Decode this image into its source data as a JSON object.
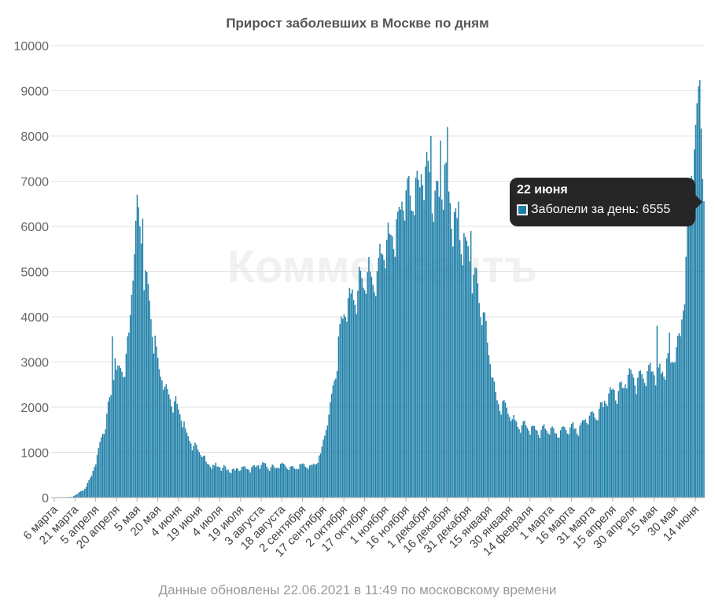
{
  "chart_data": {
    "type": "bar",
    "title": "Прирост заболевших в Москве по дням",
    "series": [
      {
        "name": "Заболели за день",
        "color": "#1e7fa8"
      }
    ],
    "ylim": [
      0,
      10000
    ],
    "yticks": [
      0,
      1000,
      2000,
      3000,
      4000,
      5000,
      6000,
      7000,
      8000,
      9000,
      10000
    ],
    "x_start": "2020-03-06",
    "x_end": "2021-06-22",
    "xticks": [
      "6 марта",
      "21 марта",
      "5 апреля",
      "20 апреля",
      "5 мая",
      "20 мая",
      "4 июня",
      "19 июня",
      "4 июля",
      "19 июля",
      "3 августа",
      "18 августа",
      "2 сентября",
      "17 сентября",
      "2 октября",
      "17 октября",
      "1 ноября",
      "16 ноября",
      "1 декабря",
      "16 декабря",
      "31 декабря",
      "15 января",
      "30 января",
      "14 февраля",
      "1 марта",
      "16 марта",
      "31 марта",
      "15 апреля",
      "30 апреля",
      "15 мая",
      "30 мая",
      "14 июня"
    ],
    "daily_anchors": [
      [
        "2020-03-06",
        5
      ],
      [
        "2020-03-21",
        15
      ],
      [
        "2020-03-29",
        160
      ],
      [
        "2020-04-05",
        550
      ],
      [
        "2020-04-12",
        1350
      ],
      [
        "2020-04-20",
        2600
      ],
      [
        "2020-04-27",
        2800
      ],
      [
        "2020-05-01",
        3500
      ],
      [
        "2020-05-05",
        5800
      ],
      [
        "2020-05-08",
        6000
      ],
      [
        "2020-05-12",
        5200
      ],
      [
        "2020-05-18",
        3900
      ],
      [
        "2020-05-22",
        2800
      ],
      [
        "2020-05-28",
        2400
      ],
      [
        "2020-06-04",
        2000
      ],
      [
        "2020-06-12",
        1400
      ],
      [
        "2020-06-19",
        1050
      ],
      [
        "2020-06-26",
        800
      ],
      [
        "2020-07-04",
        650
      ],
      [
        "2020-07-19",
        600
      ],
      [
        "2020-08-03",
        690
      ],
      [
        "2020-08-18",
        680
      ],
      [
        "2020-09-02",
        660
      ],
      [
        "2020-09-10",
        700
      ],
      [
        "2020-09-17",
        880
      ],
      [
        "2020-09-24",
        2000
      ],
      [
        "2020-10-02",
        3700
      ],
      [
        "2020-10-10",
        4500
      ],
      [
        "2020-10-17",
        4600
      ],
      [
        "2020-10-24",
        4800
      ],
      [
        "2020-11-01",
        5200
      ],
      [
        "2020-11-08",
        5800
      ],
      [
        "2020-11-16",
        6300
      ],
      [
        "2020-11-24",
        6800
      ],
      [
        "2020-12-01",
        7000
      ],
      [
        "2020-12-08",
        6700
      ],
      [
        "2020-12-16",
        6800
      ],
      [
        "2020-12-24",
        6000
      ],
      [
        "2020-12-31",
        5300
      ],
      [
        "2021-01-08",
        4800
      ],
      [
        "2021-01-15",
        3500
      ],
      [
        "2021-01-22",
        2200
      ],
      [
        "2021-01-30",
        1850
      ],
      [
        "2021-02-07",
        1600
      ],
      [
        "2021-02-14",
        1500
      ],
      [
        "2021-02-21",
        1500
      ],
      [
        "2021-03-01",
        1450
      ],
      [
        "2021-03-16",
        1450
      ],
      [
        "2021-03-31",
        1700
      ],
      [
        "2021-04-15",
        2200
      ],
      [
        "2021-04-30",
        2600
      ],
      [
        "2021-05-15",
        2700
      ],
      [
        "2021-05-30",
        2900
      ],
      [
        "2021-06-05",
        3600
      ],
      [
        "2021-06-09",
        5300
      ],
      [
        "2021-06-13",
        6800
      ],
      [
        "2021-06-17",
        8300
      ],
      [
        "2021-06-19",
        9100
      ],
      [
        "2021-06-22",
        6555
      ]
    ],
    "spikes": [
      [
        "2020-04-19",
        3570
      ],
      [
        "2020-04-21",
        3080
      ],
      [
        "2020-05-07",
        6700
      ],
      [
        "2020-05-11",
        6170
      ],
      [
        "2021-05-19",
        3800
      ],
      [
        "2021-05-28",
        3650
      ],
      [
        "2020-12-06",
        8000
      ],
      [
        "2020-12-13",
        7900
      ],
      [
        "2020-12-18",
        8200
      ],
      [
        "2020-12-26",
        6550
      ],
      [
        "2021-01-04",
        5900
      ],
      [
        "2021-06-15",
        7700
      ],
      [
        "2021-06-18",
        9100
      ]
    ]
  },
  "tooltip": {
    "date": "22 июня",
    "label": "Заболели за день: 6555"
  },
  "watermark": "Коммерсантъ",
  "footer": "Данные обновлены 22.06.2021 в 11:49 по московскому времени"
}
